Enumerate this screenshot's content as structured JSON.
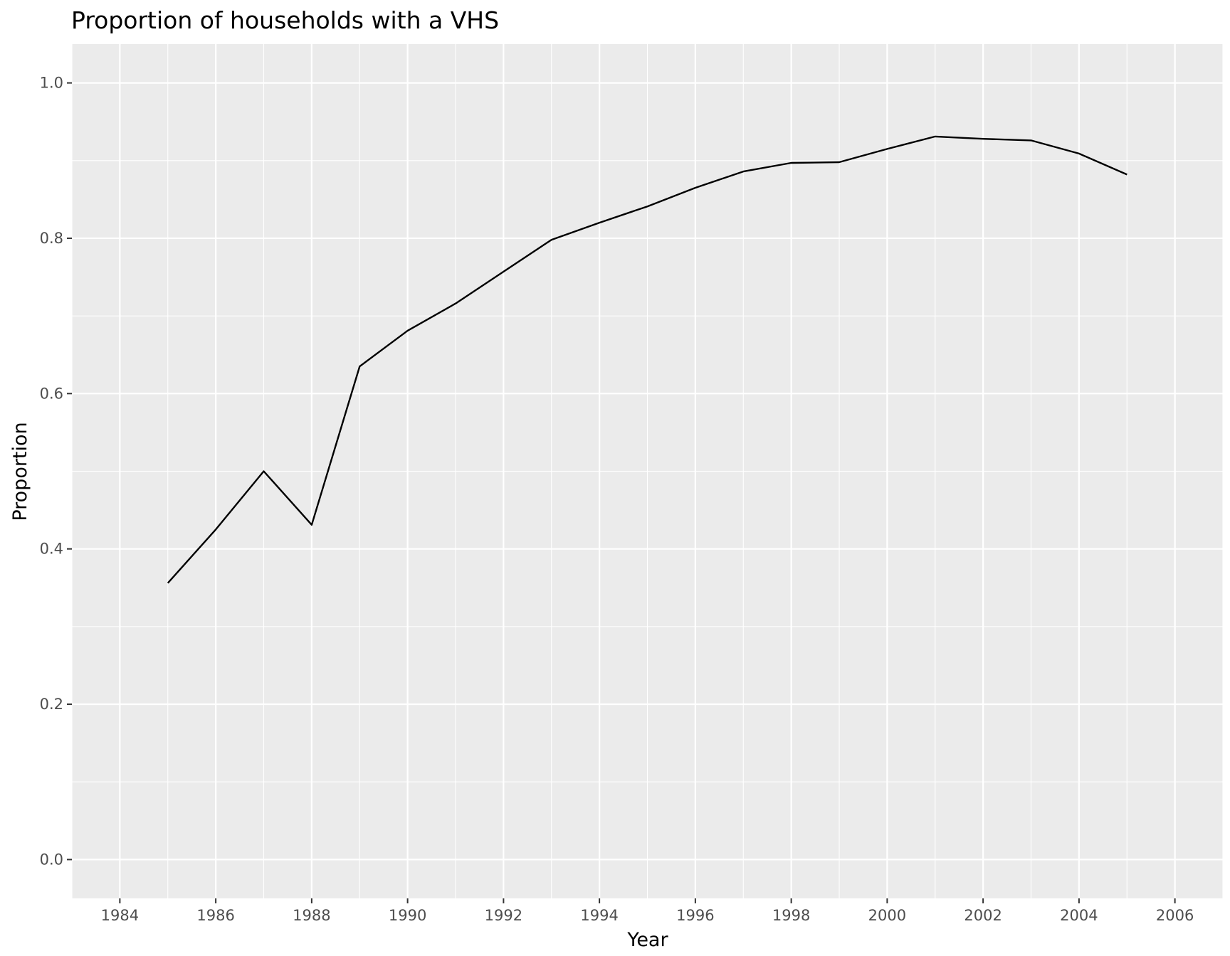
{
  "chart_data": {
    "type": "line",
    "title": "Proportion of households with a VHS",
    "xlabel": "Year",
    "ylabel": "Proportion",
    "xlim": [
      1983,
      2007
    ],
    "ylim": [
      -0.05,
      1.05
    ],
    "x_ticks": [
      1984,
      1986,
      1988,
      1990,
      1992,
      1994,
      1996,
      1998,
      2000,
      2002,
      2004,
      2006
    ],
    "y_ticks": [
      0.0,
      0.2,
      0.4,
      0.6,
      0.8,
      1.0
    ],
    "y_tick_labels": [
      "0.0",
      "0.2",
      "0.4",
      "0.6",
      "0.8",
      "1.0"
    ],
    "grid": true,
    "panel_color": "#ebebeb",
    "line_color": "#000000",
    "x": [
      1985,
      1986,
      1987,
      1988,
      1989,
      1990,
      1991,
      1992,
      1993,
      1994,
      1995,
      1996,
      1997,
      1998,
      1999,
      2000,
      2001,
      2002,
      2003,
      2004,
      2005
    ],
    "y": [
      0.356,
      0.425,
      0.5,
      0.431,
      0.635,
      0.681,
      0.716,
      0.757,
      0.798,
      0.82,
      0.841,
      0.865,
      0.886,
      0.897,
      0.898,
      0.915,
      0.931,
      0.928,
      0.926,
      0.909,
      0.882
    ]
  }
}
